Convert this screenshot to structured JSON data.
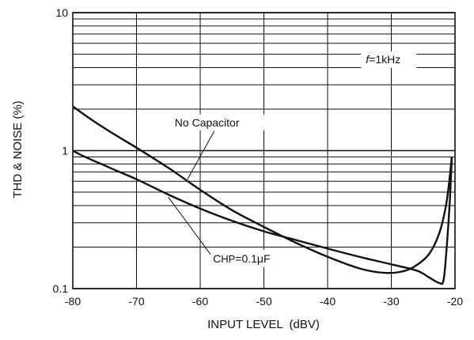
{
  "chart_data": {
    "type": "line",
    "title": "",
    "xlabel": "INPUT LEVEL  (dBV)",
    "ylabel": "THD & NOISE (%)",
    "x_scale": "linear",
    "y_scale": "log",
    "xlim": [
      -80,
      -20
    ],
    "ylim": [
      0.1,
      10
    ],
    "x_ticks": [
      -80,
      -70,
      -60,
      -50,
      -40,
      -30,
      -20
    ],
    "x_tick_labels": [
      "-80",
      "-70",
      "-60",
      "-50",
      "-40",
      "-30",
      "-20"
    ],
    "y_major_ticks": [
      0.1,
      1,
      10
    ],
    "y_tick_labels": [
      "0.1",
      "1",
      "10"
    ],
    "y_minor_ticks": [
      0.2,
      0.3,
      0.4,
      0.5,
      0.6,
      0.7,
      0.8,
      0.9,
      2,
      3,
      4,
      5,
      6,
      7,
      8,
      9
    ],
    "grid": true,
    "series": [
      {
        "name": "No Capacitor",
        "x": [
          -83,
          -80,
          -75,
          -70,
          -65,
          -60,
          -55,
          -50,
          -45,
          -40,
          -35,
          -31,
          -28,
          -26,
          -24,
          -22.5,
          -21.5,
          -21,
          -20.5
        ],
        "y": [
          2.8,
          2.1,
          1.45,
          1.05,
          0.75,
          0.52,
          0.37,
          0.28,
          0.215,
          0.17,
          0.14,
          0.13,
          0.134,
          0.148,
          0.18,
          0.25,
          0.38,
          0.55,
          0.9
        ]
      },
      {
        "name": "CHP=0.1μF",
        "x": [
          -83,
          -80,
          -75,
          -70,
          -65,
          -60,
          -55,
          -50,
          -45,
          -40,
          -35,
          -30,
          -26,
          -24,
          -22.5,
          -21.8,
          -21.3,
          -20.8,
          -20.5
        ],
        "y": [
          1.3,
          1.0,
          0.78,
          0.62,
          0.48,
          0.38,
          0.31,
          0.26,
          0.225,
          0.195,
          0.17,
          0.15,
          0.135,
          0.12,
          0.11,
          0.115,
          0.2,
          0.45,
          0.9
        ]
      }
    ],
    "annotations": [
      {
        "text": "No Capacitor",
        "x": -64,
        "y": 1.5,
        "target_x": -62,
        "target_y": 0.62
      },
      {
        "text": "C",
        "sub": "HP",
        "rest": "=0.1μF",
        "x": -58,
        "y": 0.155,
        "target_x": -65,
        "target_y": 0.46
      },
      {
        "text": "f",
        "rest": "=1kHz",
        "x": -34,
        "y": 4.3
      }
    ]
  }
}
